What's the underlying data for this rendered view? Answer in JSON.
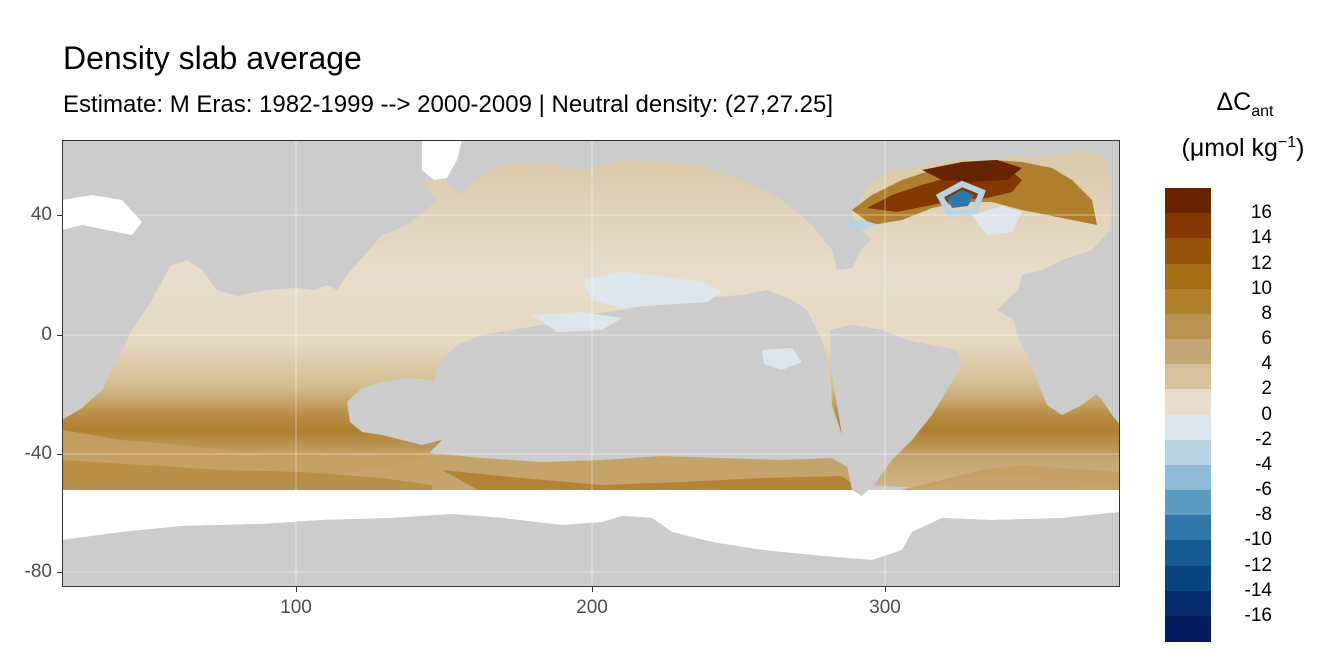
{
  "map": {
    "title": "Density slab average",
    "subtitle": "Estimate: M Eras: 1982-1999 --> 2000-2009 | Neutral density: (27,27.25]",
    "land_color": "#cccccc",
    "no_data_color": "#ffffff"
  },
  "axes": {
    "y_ticks": [
      "40",
      "0",
      "-40",
      "-80"
    ],
    "x_ticks": [
      "100",
      "200",
      "300"
    ]
  },
  "legend": {
    "title_main": "ΔC",
    "title_sub": "ant",
    "unit_open": "(μmol kg",
    "unit_sup": "−1",
    "unit_close": ")",
    "labels": [
      "16",
      "14",
      "12",
      "10",
      "8",
      "6",
      "4",
      "2",
      "0",
      "-2",
      "-4",
      "-6",
      "-8",
      "-10",
      "-12",
      "-14",
      "-16"
    ],
    "colors": [
      "#672300",
      "#823800",
      "#95520a",
      "#a56b14",
      "#b07f2d",
      "#ba9250",
      "#c5a775",
      "#d5c19d",
      "#e8ddcc",
      "#dde6ec",
      "#b9d3e3",
      "#8fbad3",
      "#5e9bc0",
      "#2f78a9",
      "#145c92",
      "#08447d",
      "#062b6e",
      "#031a5c"
    ]
  }
}
